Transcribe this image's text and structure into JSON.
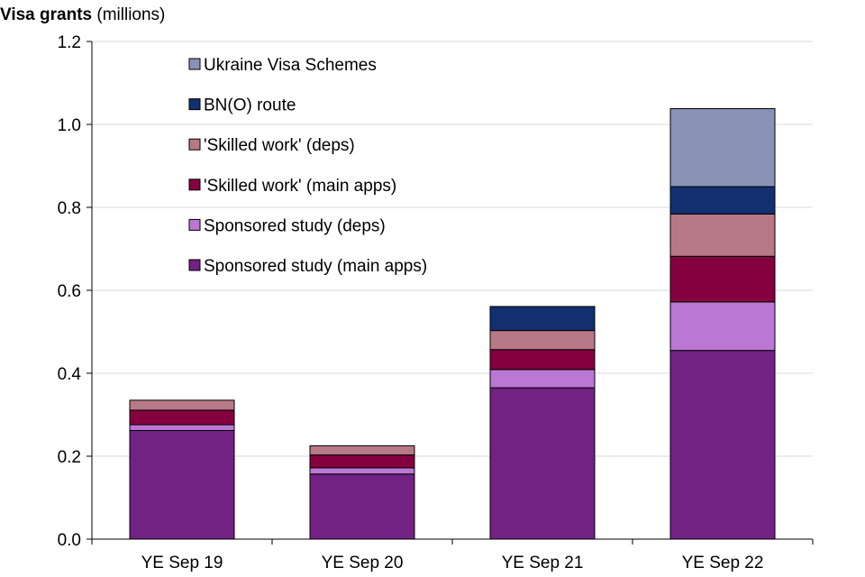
{
  "title": {
    "main": "Visa grants",
    "unit": "(millions)"
  },
  "colors": {
    "Sponsored study (main apps)": "#722283",
    "Sponsored study (deps)": "#bb77d4",
    "'Skilled work' (main apps)": "#85003f",
    "'Skilled work' (deps)": "#b87987",
    "BN(O) route": "#123070",
    "Ukraine Visa Schemes": "#8a92b8",
    "outline": "#000000",
    "grid": "#d9d9d9"
  },
  "chart_data": {
    "type": "bar",
    "stacked": true,
    "title": "Visa grants (millions)",
    "xlabel": "",
    "ylabel": "",
    "categories": [
      "YE Sep 19",
      "YE Sep 20",
      "YE Sep 21",
      "YE Sep 22"
    ],
    "series": [
      {
        "name": "Sponsored study (main apps)",
        "values": [
          0.262,
          0.157,
          0.365,
          0.455
        ]
      },
      {
        "name": "Sponsored study (deps)",
        "values": [
          0.014,
          0.015,
          0.044,
          0.117
        ]
      },
      {
        "name": "'Skilled work' (main apps)",
        "values": [
          0.035,
          0.031,
          0.048,
          0.11
        ]
      },
      {
        "name": "'Skilled work' (deps)",
        "values": [
          0.024,
          0.022,
          0.046,
          0.102
        ]
      },
      {
        "name": "BN(O) route",
        "values": [
          0,
          0,
          0.058,
          0.066
        ]
      },
      {
        "name": "Ukraine Visa Schemes",
        "values": [
          0,
          0,
          0,
          0.188
        ]
      }
    ],
    "ylim": [
      0,
      1.2
    ],
    "yticks": [
      "0.0",
      "0.2",
      "0.4",
      "0.6",
      "0.8",
      "1.0",
      "1.2"
    ],
    "grid": true,
    "legend_position": "top-left, inside plot, reversed order",
    "legend_order": [
      "Ukraine Visa Schemes",
      "BN(O) route",
      "'Skilled work' (deps)",
      "'Skilled work' (main apps)",
      "Sponsored study (deps)",
      "Sponsored study (main apps)"
    ]
  }
}
